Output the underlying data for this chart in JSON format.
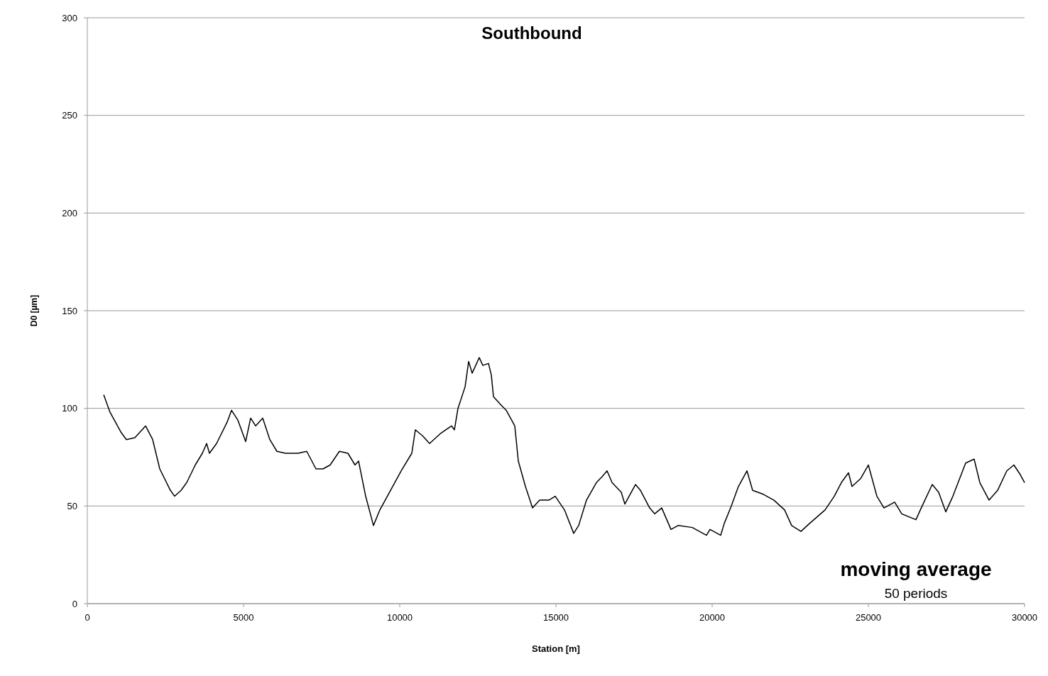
{
  "chart_data": {
    "type": "line",
    "title": "Southbound",
    "xlabel": "Station [m]",
    "ylabel": "D0 [µm]",
    "annotations": [
      "moving average",
      "50 periods"
    ],
    "xlim": [
      0,
      30000
    ],
    "xticks": [
      0,
      5000,
      10000,
      15000,
      20000,
      25000,
      30000
    ],
    "ylim": [
      0,
      300
    ],
    "yticks": [
      0,
      50,
      100,
      150,
      200,
      250,
      300
    ],
    "grid": "y",
    "marker": "none",
    "line_style": "solid",
    "x": [
      523,
      727,
      1068,
      1250,
      1523,
      1750,
      1864,
      2091,
      2318,
      2659,
      2795,
      3000,
      3182,
      3455,
      3682,
      3818,
      3909,
      4136,
      4477,
      4614,
      4818,
      5068,
      5227,
      5386,
      5614,
      5841,
      6068,
      6341,
      6750,
      7023,
      7318,
      7545,
      7773,
      8068,
      8341,
      8568,
      8682,
      8909,
      9159,
      9364,
      9705,
      10045,
      10386,
      10500,
      10727,
      10955,
      11295,
      11659,
      11750,
      11864,
      12091,
      12205,
      12318,
      12545,
      12659,
      12841,
      12932,
      13000,
      13227,
      13409,
      13682,
      13795,
      14023,
      14250,
      14477,
      14773,
      14977,
      15273,
      15568,
      15727,
      15977,
      16295,
      16477,
      16636,
      16795,
      17091,
      17205,
      17545,
      17705,
      18000,
      18159,
      18386,
      18682,
      18909,
      19364,
      19818,
      19932,
      20273,
      20386,
      20614,
      20841,
      21114,
      21295,
      21636,
      21977,
      22318,
      22545,
      22841,
      23114,
      23614,
      23909,
      24136,
      24364,
      24477,
      24750,
      25000,
      25273,
      25500,
      25841,
      26068,
      26523,
      26750,
      27045,
      27250,
      27477,
      27705,
      28114,
      28386,
      28568,
      28864,
      29136,
      29432,
      29659,
      29864,
      30000
    ],
    "series": [
      {
        "color": "#000000",
        "values": [
          107,
          98,
          88,
          84,
          85,
          89,
          91,
          84,
          69,
          58,
          55,
          58,
          62,
          71,
          77,
          82,
          77,
          82,
          93,
          99,
          94,
          83,
          95,
          91,
          95,
          84,
          78,
          77,
          77,
          78,
          69,
          69,
          71,
          78,
          77,
          71,
          73,
          55,
          40,
          48,
          58,
          68,
          77,
          89,
          86,
          82,
          87,
          91,
          89,
          100,
          111,
          124,
          118,
          126,
          122,
          123,
          117,
          106,
          102,
          99,
          91,
          73,
          60,
          49,
          53,
          53,
          55,
          48,
          36,
          40,
          53,
          62,
          65,
          68,
          62,
          57,
          51,
          61,
          58,
          49,
          46,
          49,
          38,
          40,
          39,
          35,
          38,
          35,
          41,
          50,
          60,
          68,
          58,
          56,
          53,
          48,
          40,
          37,
          41,
          48,
          55,
          62,
          67,
          60,
          64,
          71,
          55,
          49,
          52,
          46,
          43,
          51,
          61,
          57,
          47,
          55,
          72,
          74,
          62,
          53,
          58,
          68,
          71,
          66,
          62
        ]
      }
    ]
  }
}
